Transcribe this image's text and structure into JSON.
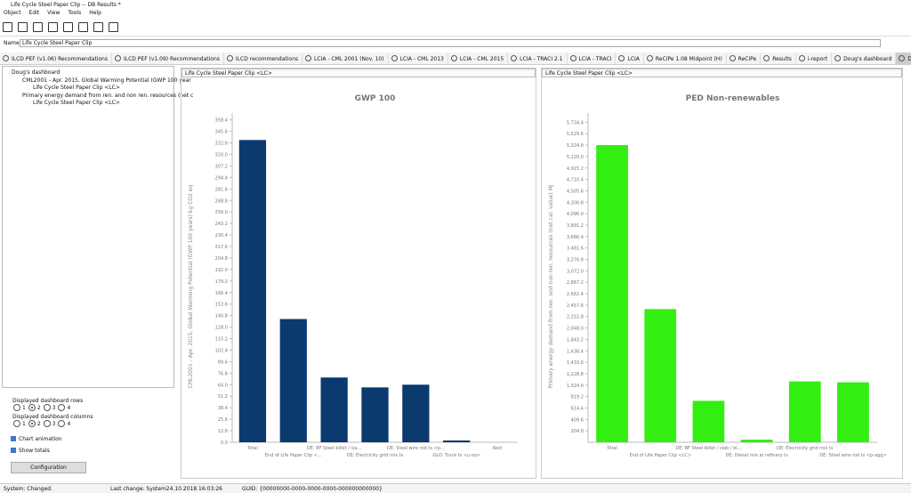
{
  "window_title": "Life Cycle Steel Paper Clip -- DB Results *",
  "menu": [
    "Object",
    "Edit",
    "View",
    "Tools",
    "Help"
  ],
  "name_label": "Name",
  "name_value": "Life Cycle Steel Paper Clip",
  "tabs": [
    "ILCD PEF (v1.06) Recommendations",
    "ILCD PEF (v1.09) Recommendations",
    "ILCD recommendations",
    "LCIA - CML 2001 (Nov. 10)",
    "LCIA - CML 2013",
    "LCIA - CML 2015",
    "LCIA - TRACI 2.1",
    "LCIA - TRACI",
    "LCIA",
    "ReCiPe 1.08 Midpoint (H)",
    "ReCiPe",
    "Results",
    "i-report",
    "Doug's dashboard",
    "Doug's dashboard"
  ],
  "tree": [
    "Doug's dashboard",
    "CML2001 - Apr. 2015, Global Warming Potential (GWP 100 year",
    "Life Cycle Steel Paper Clip <LC>",
    "Primary energy demand from ren. and non ren. resources (net c",
    "Life Cycle Steel Paper Clip <LC>"
  ],
  "controls": {
    "rows_label": "Displayed dashboard rows",
    "rows_options": [
      "1",
      "2",
      "3",
      "4"
    ],
    "columns_label": "Displayed dashboard columns",
    "columns_options": [
      "1",
      "2",
      "3",
      "4"
    ],
    "chart_animation": "Chart animation",
    "show_totals": "Show totals",
    "button": "Configuration"
  },
  "status": {
    "system": "System: Changed.",
    "last_change": "Last change: System24.10.2018 16:03:26",
    "guid": "GUID: {00000000-0000-0000-0000-000000000000}"
  },
  "chart_data": [
    {
      "type": "bar",
      "panel_title": "Life Cycle Steel Paper Clip <LC>",
      "title": "GWP 100",
      "y_label": "CML2001 - Apr. 2015, Global Warming Potential (GWP 100 years) kg CO2 eq",
      "categories": [
        "Total",
        "End of Life Paper Clip <...",
        "DE: BF Steel billet / sla...",
        "DE: Electricity grid mix ts",
        "DE: Steel wire rod ts <p...",
        "GLO: Truck ts <u-so>",
        "Rest"
      ],
      "values": [
        336,
        137,
        72,
        61,
        64,
        2,
        0
      ],
      "color": "#0b3a6e",
      "ylim": [
        0,
        366
      ],
      "yticks": [
        {
          "value": 0,
          "label": "0.0"
        },
        12.8,
        25.6,
        38.4,
        51.2,
        {
          "value": 64,
          "label": "64.0"
        },
        76.8,
        89.6,
        102.4,
        115.2,
        {
          "value": 128,
          "label": "128.0"
        },
        140.8,
        153.6,
        166.4,
        179.2,
        {
          "value": 192,
          "label": "192.0"
        },
        204.8,
        217.6,
        230.4,
        243.2,
        {
          "value": 256,
          "label": "256.0"
        },
        268.8,
        281.6,
        294.4,
        307.2,
        {
          "value": 320,
          "label": "320.0"
        },
        332.8,
        345.6,
        358.4
      ]
    },
    {
      "type": "bar",
      "panel_title": "Life Cycle Steel Paper Clip <LC>",
      "title": "PED Non-renewables",
      "y_label": "Primary energy demand from ren. and non ren. resources (net cal. value) MJ",
      "categories": [
        "Total",
        "End of Life Paper Clip <LC>",
        "DE: BF Steel billet / slab / bl...",
        "DE: Diesel mix at refinery ts",
        "DE: Electricity grid mix ts",
        "DE: Steel wire rod ts <p-agg>"
      ],
      "values": [
        5325,
        2386,
        743,
        47,
        1090,
        1075
      ],
      "color": "#33ee11",
      "ylim": [
        0,
        5900
      ],
      "yticks": [
        204.8,
        409.6,
        614.4,
        819.2,
        {
          "value": 1024,
          "label": "1,024.0"
        },
        {
          "value": 1228.8,
          "label": "1,228.8"
        },
        {
          "value": 1433.6,
          "label": "1,433.6"
        },
        {
          "value": 1638.4,
          "label": "1,638.4"
        },
        {
          "value": 1843.2,
          "label": "1,843.2"
        },
        {
          "value": 2048,
          "label": "2,048.0"
        },
        {
          "value": 2252.8,
          "label": "2,252.8"
        },
        {
          "value": 2457.6,
          "label": "2,457.6"
        },
        {
          "value": 2662.4,
          "label": "2,662.4"
        },
        {
          "value": 2867.2,
          "label": "2,867.2"
        },
        {
          "value": 3072,
          "label": "3,072.0"
        },
        {
          "value": 3276.8,
          "label": "3,276.8"
        },
        {
          "value": 3481.6,
          "label": "3,481.6"
        },
        {
          "value": 3686.4,
          "label": "3,686.4"
        },
        {
          "value": 3891.2,
          "label": "3,891.2"
        },
        {
          "value": 4096,
          "label": "4,096.0"
        },
        {
          "value": 4300.8,
          "label": "4,300.8"
        },
        {
          "value": 4505.6,
          "label": "4,505.6"
        },
        {
          "value": 4710.4,
          "label": "4,710.4"
        },
        {
          "value": 4915.2,
          "label": "4,915.2"
        },
        {
          "value": 5120,
          "label": "5,120.0"
        },
        {
          "value": 5324.8,
          "label": "5,324.8"
        },
        {
          "value": 5529.6,
          "label": "5,529.6"
        },
        {
          "value": 5734.4,
          "label": "5,734.4"
        }
      ]
    }
  ]
}
